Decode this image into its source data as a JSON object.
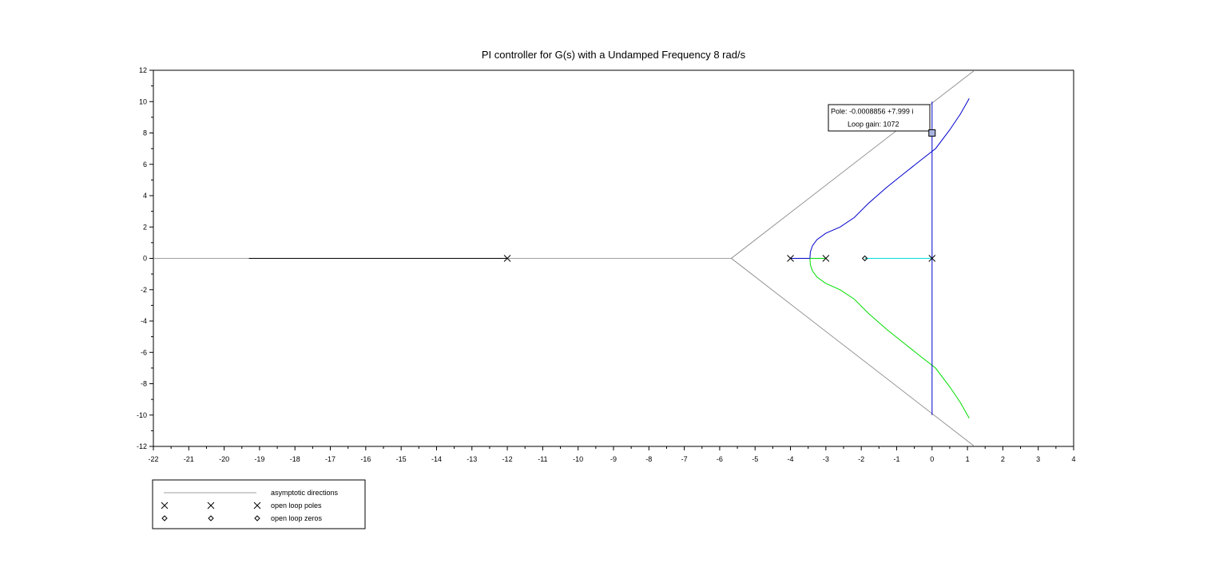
{
  "chart_data": {
    "type": "line",
    "title": "PI controller for G(s) with a Undamped Frequency 8 rad/s",
    "xlim": [
      -22,
      4
    ],
    "ylim": [
      -12,
      12
    ],
    "x_ticks": [
      -22,
      -21,
      -20,
      -19,
      -18,
      -17,
      -16,
      -15,
      -14,
      -13,
      -12,
      -11,
      -10,
      -9,
      -8,
      -7,
      -6,
      -5,
      -4,
      -3,
      -2,
      -1,
      0,
      1,
      2,
      3,
      4
    ],
    "y_ticks": [
      12,
      10,
      8,
      6,
      4,
      2,
      0,
      -2,
      -4,
      -6,
      -8,
      -10,
      -12
    ],
    "grid": false,
    "asymptote_center": [
      -5.67,
      0
    ],
    "asymptote_lines": [
      {
        "points": [
          [
            -22,
            0
          ],
          [
            -5.67,
            0
          ]
        ]
      },
      {
        "points": [
          [
            -5.67,
            0
          ],
          [
            1.2,
            12
          ]
        ]
      },
      {
        "points": [
          [
            -5.67,
            0
          ],
          [
            1.2,
            -12
          ]
        ]
      }
    ],
    "branches": [
      {
        "color": "#000000",
        "points": [
          [
            -12,
            0
          ],
          [
            -19.3,
            0
          ]
        ]
      },
      {
        "color": "#0000cc",
        "points": [
          [
            -4,
            0
          ],
          [
            -3.45,
            0
          ]
        ]
      },
      {
        "color": "#00dd00",
        "points": [
          [
            -3,
            0
          ],
          [
            -3.45,
            0
          ]
        ]
      },
      {
        "color": "#0000cc",
        "points": [
          [
            -3.45,
            0
          ],
          [
            -3.44,
            0.4
          ],
          [
            -3.38,
            0.8
          ],
          [
            -3.25,
            1.2
          ],
          [
            -3.0,
            1.6
          ],
          [
            -2.6,
            2.0
          ],
          [
            -2.2,
            2.6
          ],
          [
            -1.8,
            3.5
          ],
          [
            -1.3,
            4.5
          ],
          [
            -0.8,
            5.4
          ],
          [
            -0.3,
            6.3
          ],
          [
            0.1,
            7.0
          ],
          [
            0.5,
            8.2
          ],
          [
            0.8,
            9.2
          ],
          [
            1.05,
            10.2
          ]
        ]
      },
      {
        "color": "#00dd00",
        "points": [
          [
            -3.45,
            0
          ],
          [
            -3.44,
            -0.4
          ],
          [
            -3.38,
            -0.8
          ],
          [
            -3.25,
            -1.2
          ],
          [
            -3.0,
            -1.6
          ],
          [
            -2.6,
            -2.0
          ],
          [
            -2.2,
            -2.6
          ],
          [
            -1.8,
            -3.5
          ],
          [
            -1.3,
            -4.5
          ],
          [
            -0.8,
            -5.4
          ],
          [
            -0.3,
            -6.3
          ],
          [
            0.1,
            -7.0
          ],
          [
            0.5,
            -8.2
          ],
          [
            0.8,
            -9.2
          ],
          [
            1.05,
            -10.2
          ]
        ]
      },
      {
        "color": "#00dddd",
        "points": [
          [
            0,
            0
          ],
          [
            -1.9,
            0
          ]
        ]
      },
      {
        "color": "#0000cc",
        "points": [
          [
            0,
            0
          ],
          [
            0,
            10
          ]
        ]
      },
      {
        "color": "#0000cc",
        "points": [
          [
            0,
            0
          ],
          [
            0,
            -10
          ]
        ]
      }
    ],
    "open_loop_poles": [
      [
        -12,
        0
      ],
      [
        -4,
        0
      ],
      [
        -3,
        0
      ],
      [
        0,
        0
      ]
    ],
    "open_loop_zeros": [
      [
        -1.9,
        0
      ]
    ],
    "datatip": {
      "point": [
        0,
        8
      ],
      "line1": "Pole: -0.0008856 +7.999 i",
      "line2": "Loop gain: 1072"
    },
    "legend": {
      "placement": "below-left",
      "items": [
        {
          "label": "asymptotic directions",
          "symbol": "line"
        },
        {
          "label": "open loop poles",
          "symbol": "x"
        },
        {
          "label": "open loop zeros",
          "symbol": "diamond"
        }
      ]
    }
  }
}
